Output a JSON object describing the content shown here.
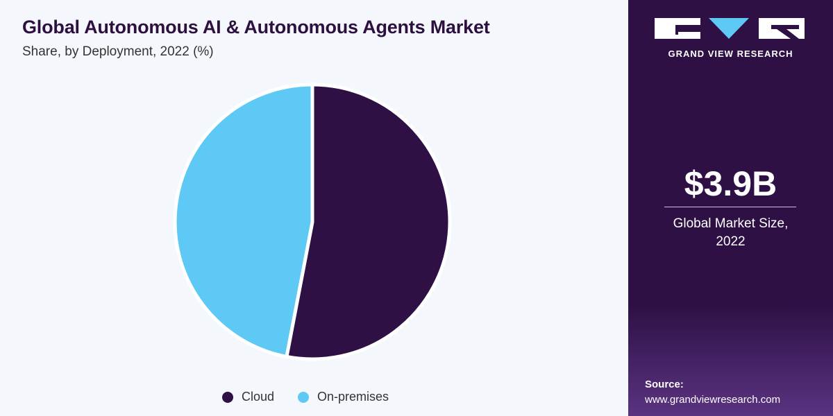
{
  "header": {
    "title": "Global Autonomous AI & Autonomous Agents Market",
    "subtitle": "Share, by Deployment, 2022 (%)"
  },
  "chart_data": {
    "type": "pie",
    "categories": [
      "Cloud",
      "On-premises"
    ],
    "values": [
      53,
      47
    ],
    "colors": [
      "#2e1045",
      "#5ec9f5"
    ],
    "legend": "bottom",
    "data_labels": false
  },
  "sidebar": {
    "brand_name": "GRAND VIEW RESEARCH",
    "market_size_value": "$3.9B",
    "market_size_label_line1": "Global Market Size,",
    "market_size_label_line2": "2022",
    "source_label": "Source:",
    "source_url": "www.grandviewresearch.com"
  },
  "colors": {
    "background": "#f4f8fc",
    "title": "#2d1040",
    "panel": "#2e1045",
    "accent": "#5ec9f5"
  }
}
